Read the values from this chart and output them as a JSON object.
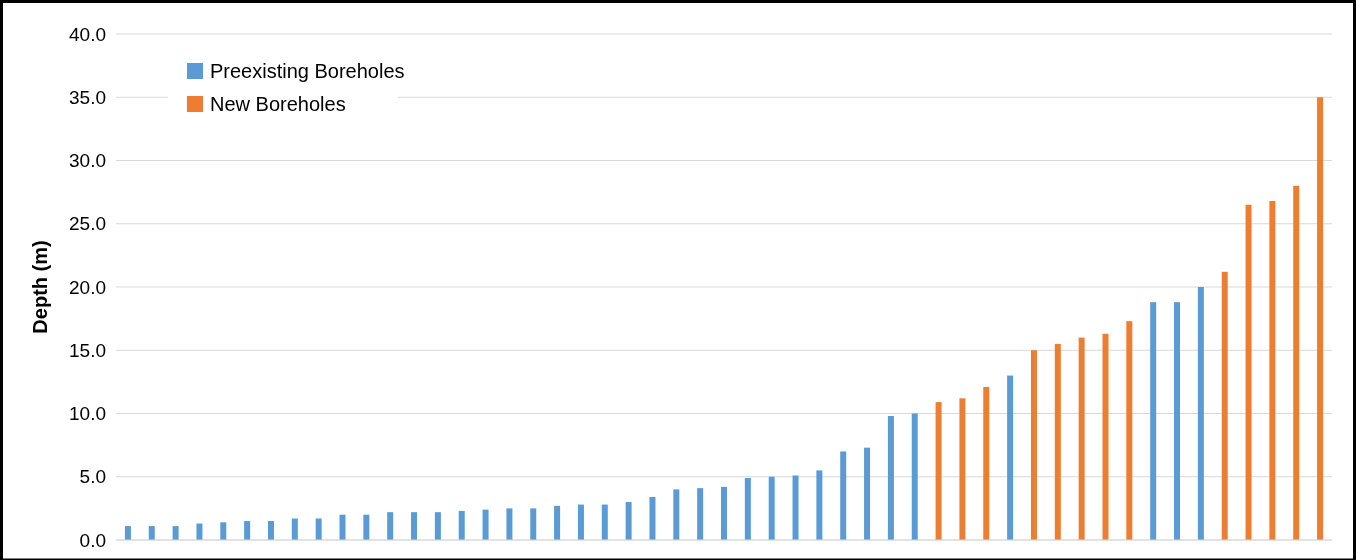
{
  "chart_data": {
    "type": "bar",
    "ylabel": "Depth (m)",
    "stacked": true,
    "grid": "y",
    "legend": "top left",
    "categories": [
      null,
      null,
      null,
      null,
      null,
      null,
      null,
      null,
      null,
      null,
      null,
      null,
      null,
      null,
      null,
      null,
      null,
      null,
      null,
      null,
      null,
      null,
      null,
      null,
      null,
      null,
      null,
      null,
      null,
      null,
      null,
      null,
      null,
      null,
      null,
      null,
      null,
      null,
      null,
      null,
      null,
      null,
      null,
      null,
      null,
      null,
      null,
      null,
      null,
      null,
      null
    ],
    "ylim": [
      0,
      40
    ],
    "yticks": [
      {
        "value": 0,
        "label": "0.0"
      },
      {
        "value": 5,
        "label": "5.0"
      },
      {
        "value": 10,
        "label": "10.0"
      },
      {
        "value": 15,
        "label": "15.0"
      },
      {
        "value": 20,
        "label": "20.0"
      },
      {
        "value": 25,
        "label": "25.0"
      },
      {
        "value": 30,
        "label": "30.0"
      },
      {
        "value": 35,
        "label": "35.0"
      },
      {
        "value": 40,
        "label": "40.0"
      }
    ],
    "series": [
      {
        "name": "Preexisting Boreholes",
        "color": "#5b9bd5",
        "values": [
          1.1,
          1.1,
          1.1,
          1.3,
          1.4,
          1.5,
          1.5,
          1.7,
          1.7,
          2.0,
          2.0,
          2.2,
          2.2,
          2.2,
          2.3,
          2.4,
          2.5,
          2.5,
          2.7,
          2.8,
          2.8,
          3.0,
          3.4,
          4.0,
          4.1,
          4.2,
          4.9,
          5.0,
          5.1,
          5.5,
          7.0,
          7.3,
          9.8,
          10.0,
          null,
          null,
          null,
          13.0,
          null,
          null,
          null,
          null,
          null,
          18.8,
          18.8,
          20.0,
          null,
          null,
          null,
          null,
          null
        ]
      },
      {
        "name": "New Boreholes",
        "color": "#ed7d31",
        "values": [
          null,
          null,
          null,
          null,
          null,
          null,
          null,
          null,
          null,
          null,
          null,
          null,
          null,
          null,
          null,
          null,
          null,
          null,
          null,
          null,
          null,
          null,
          null,
          null,
          null,
          null,
          null,
          null,
          null,
          null,
          null,
          null,
          null,
          null,
          10.9,
          11.2,
          12.1,
          null,
          15.0,
          15.5,
          16.0,
          16.3,
          17.3,
          null,
          null,
          null,
          21.2,
          26.5,
          26.8,
          28.0,
          35.0
        ]
      }
    ]
  }
}
